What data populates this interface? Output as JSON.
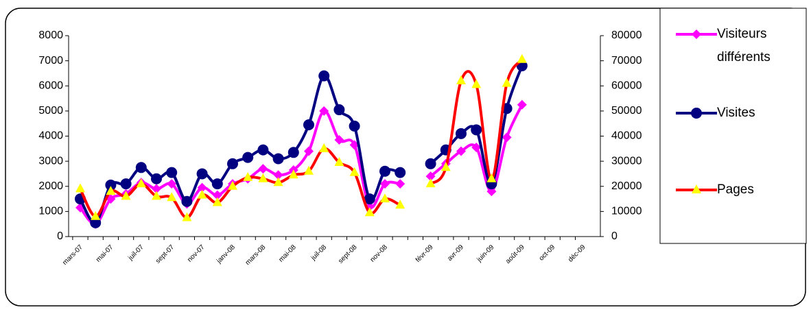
{
  "chart_data": {
    "type": "line",
    "categories": [
      "mars-07",
      null,
      "mai-07",
      null,
      "juil-07",
      null,
      "sept-07",
      null,
      "nov-07",
      null,
      "janv-08",
      null,
      "mars-08",
      null,
      "mai-08",
      null,
      "juil-08",
      null,
      "sept-08",
      null,
      "nov-08",
      null,
      null,
      "févr-09",
      null,
      "avr-09",
      null,
      "juin-09",
      null,
      "août-09",
      null,
      "oct-09",
      null,
      "déc-09"
    ],
    "ylim": [
      0,
      8000
    ],
    "yticks": [
      0,
      1000,
      2000,
      3000,
      4000,
      5000,
      6000,
      7000,
      8000
    ],
    "y2lim": [
      0,
      80000
    ],
    "y2ticks": [
      0,
      10000,
      20000,
      30000,
      40000,
      50000,
      60000,
      70000,
      80000
    ],
    "grid": false,
    "legend": "right",
    "series": [
      {
        "name": "Visiteurs différents",
        "color": "#ff00ff",
        "marker": "diamond",
        "marker_color": "#ff00ff",
        "values": [
          1150,
          500,
          1500,
          1700,
          2150,
          1900,
          2100,
          1300,
          1950,
          1650,
          2100,
          2300,
          2700,
          2450,
          2650,
          3400,
          5000,
          3850,
          3650,
          1200,
          2100,
          2100,
          null,
          2400,
          2900,
          3400,
          3550,
          1800,
          3950,
          5250,
          null,
          null,
          null,
          null
        ]
      },
      {
        "name": "Visites",
        "color": "#000080",
        "marker": "circle",
        "marker_color": "#000080",
        "values": [
          1500,
          550,
          2050,
          2100,
          2750,
          2300,
          2550,
          1400,
          2500,
          2100,
          2900,
          3150,
          3450,
          3100,
          3350,
          4450,
          6400,
          5050,
          4400,
          1500,
          2600,
          2550,
          null,
          2900,
          3450,
          4100,
          4250,
          2100,
          5100,
          6800,
          null,
          null,
          null,
          null
        ]
      },
      {
        "name": "Pages",
        "color": "#ff0000",
        "marker": "triangle",
        "marker_color": "#ffff00",
        "axis": "y2",
        "values": [
          19000,
          8000,
          18000,
          16000,
          21000,
          16000,
          15500,
          7500,
          16500,
          13500,
          20000,
          23500,
          23000,
          21500,
          24500,
          26000,
          35000,
          29500,
          25500,
          9500,
          15000,
          12500,
          null,
          21000,
          27500,
          62000,
          60500,
          23000,
          61000,
          70500,
          null,
          null,
          null,
          null
        ]
      }
    ]
  }
}
